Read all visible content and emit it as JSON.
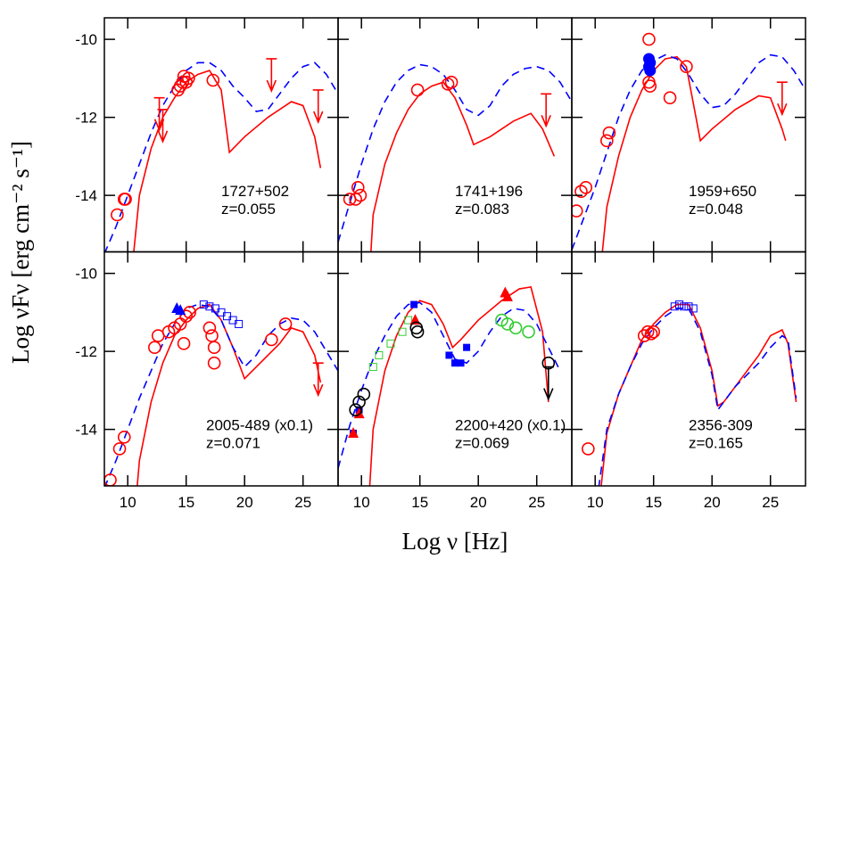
{
  "xlabel": "Log ν [Hz]",
  "ylabel": "Log νFν [erg cm⁻² s⁻¹]",
  "chart_data": [
    {
      "type": "scatter",
      "source": "1727+502",
      "redshift": "z=0.055",
      "xlim": [
        8,
        28
      ],
      "ylim": [
        -15.45,
        -9.45
      ],
      "xticks": [
        10,
        15,
        20,
        25
      ],
      "yticks": [
        -14,
        -12,
        -10
      ],
      "x_tick_labels": false,
      "y_tick_labels": true,
      "series": [
        {
          "marker": "line-solid",
          "color": "#ff0000",
          "x": [
            10.5,
            11,
            12,
            13,
            14,
            15,
            16,
            17,
            18,
            18.7,
            20,
            22,
            24,
            25,
            26,
            26.5
          ],
          "values": [
            -15.5,
            -14,
            -12.8,
            -12,
            -11.5,
            -11.1,
            -10.9,
            -10.8,
            -11.3,
            -12.9,
            -12.5,
            -12,
            -11.6,
            -11.7,
            -12.5,
            -13.3
          ]
        },
        {
          "marker": "line-dashed",
          "color": "#0000ff",
          "x": [
            8,
            9,
            10,
            11,
            12,
            13,
            14,
            15,
            16,
            17,
            18,
            19,
            20,
            21,
            22,
            23,
            24,
            25,
            26,
            27,
            28
          ],
          "values": [
            -15.5,
            -14.8,
            -14,
            -13.2,
            -12.4,
            -11.7,
            -11.2,
            -10.8,
            -10.6,
            -10.6,
            -10.8,
            -11.2,
            -11.5,
            -11.85,
            -11.8,
            -11.4,
            -11,
            -10.7,
            -10.6,
            -10.9,
            -11.4
          ]
        },
        {
          "marker": "open-circle",
          "color": "#ff0000",
          "x": [
            9.1,
            9.7,
            9.8,
            14.3,
            14.5,
            14.7,
            14.8,
            15,
            15.2,
            17.3
          ],
          "values": [
            -14.5,
            -14.1,
            -14.1,
            -11.3,
            -11.2,
            -11.1,
            -10.95,
            -11.1,
            -11,
            -11.05
          ]
        },
        {
          "marker": "upper-limit",
          "color": "#ff0000",
          "x": [
            12.7,
            13,
            22.3,
            26.3
          ],
          "values": [
            -11.5,
            -11.8,
            -10.5,
            -11.3
          ]
        }
      ]
    },
    {
      "type": "scatter",
      "source": "1741+196",
      "redshift": "z=0.083",
      "xlim": [
        8,
        28
      ],
      "ylim": [
        -15.45,
        -9.45
      ],
      "xticks": [
        10,
        15,
        20,
        25
      ],
      "yticks": [
        -14,
        -12,
        -10
      ],
      "x_tick_labels": false,
      "y_tick_labels": false,
      "series": [
        {
          "marker": "line-solid",
          "color": "#ff0000",
          "x": [
            10.8,
            11,
            12,
            13,
            14,
            15,
            16,
            17,
            18,
            19,
            19.6,
            21,
            23,
            24.5,
            25.5,
            26.5
          ],
          "values": [
            -15.5,
            -14.5,
            -13.2,
            -12.4,
            -11.8,
            -11.4,
            -11.2,
            -11.1,
            -11.5,
            -12.2,
            -12.7,
            -12.5,
            -12.1,
            -11.9,
            -12.3,
            -13
          ]
        },
        {
          "marker": "line-dashed",
          "color": "#0000ff",
          "x": [
            8,
            9,
            10,
            11,
            12,
            13,
            14,
            15,
            16,
            17,
            18,
            19,
            20,
            21,
            22,
            23,
            24,
            25,
            26,
            27,
            28
          ],
          "values": [
            -15.2,
            -14.2,
            -13.2,
            -12.3,
            -11.6,
            -11.1,
            -10.8,
            -10.65,
            -10.7,
            -10.9,
            -11.3,
            -11.8,
            -11.95,
            -11.7,
            -11.2,
            -10.9,
            -10.75,
            -10.7,
            -10.8,
            -11.1,
            -11.6
          ]
        },
        {
          "marker": "open-circle",
          "color": "#ff0000",
          "x": [
            9,
            9.5,
            9.7,
            9.9,
            14.8,
            17.4,
            17.7
          ],
          "values": [
            -14.1,
            -14.1,
            -13.8,
            -14,
            -11.3,
            -11.15,
            -11.1
          ]
        },
        {
          "marker": "upper-limit",
          "color": "#ff0000",
          "x": [
            25.8
          ],
          "values": [
            -11.4
          ]
        }
      ]
    },
    {
      "type": "scatter",
      "source": "1959+650",
      "redshift": "z=0.048",
      "xlim": [
        8,
        28
      ],
      "ylim": [
        -15.45,
        -9.45
      ],
      "xticks": [
        10,
        15,
        20,
        25
      ],
      "yticks": [
        -14,
        -12,
        -10
      ],
      "x_tick_labels": false,
      "y_tick_labels": false,
      "series": [
        {
          "marker": "line-solid",
          "color": "#ff0000",
          "x": [
            10.6,
            11,
            12,
            13,
            14,
            15,
            16,
            17,
            17.8,
            18.5,
            19,
            20,
            22,
            24,
            25,
            26,
            26.3
          ],
          "values": [
            -15.5,
            -14.3,
            -13,
            -12,
            -11.3,
            -10.8,
            -10.5,
            -10.45,
            -10.7,
            -11.8,
            -12.6,
            -12.3,
            -11.8,
            -11.45,
            -11.5,
            -12.3,
            -12.6
          ]
        },
        {
          "marker": "line-dashed",
          "color": "#0000ff",
          "x": [
            8,
            9,
            10,
            11,
            12,
            13,
            14,
            15,
            16,
            17,
            18,
            19,
            20,
            21,
            22,
            23,
            24,
            25,
            26,
            27,
            28
          ],
          "values": [
            -15.4,
            -14.6,
            -13.8,
            -12.9,
            -12,
            -11.3,
            -10.8,
            -10.55,
            -10.4,
            -10.5,
            -10.9,
            -11.4,
            -11.75,
            -11.7,
            -11.4,
            -11,
            -10.6,
            -10.4,
            -10.45,
            -10.8,
            -11.3
          ]
        },
        {
          "marker": "open-circle",
          "color": "#ff0000",
          "x": [
            8.4,
            8.8,
            9.2,
            11,
            11.2,
            14.6,
            14.6,
            14.7,
            16.4,
            17.8
          ],
          "values": [
            -14.4,
            -13.9,
            -13.8,
            -12.6,
            -12.4,
            -10,
            -11.1,
            -11.2,
            -11.5,
            -10.7
          ]
        },
        {
          "marker": "filled-circle",
          "color": "#0000ff",
          "x": [
            14.6,
            14.7,
            14.6,
            14.7
          ],
          "values": [
            -10.5,
            -10.6,
            -10.7,
            -10.8
          ]
        },
        {
          "marker": "upper-limit",
          "color": "#ff0000",
          "x": [
            26
          ],
          "values": [
            -11.1
          ]
        }
      ]
    },
    {
      "type": "scatter",
      "source": "2005-489 (x0.1)",
      "redshift": "z=0.071",
      "xlim": [
        8,
        28
      ],
      "ylim": [
        -15.45,
        -9.45
      ],
      "xticks": [
        10,
        15,
        20,
        25
      ],
      "yticks": [
        -14,
        -12,
        -10
      ],
      "x_tick_labels": true,
      "y_tick_labels": true,
      "series": [
        {
          "marker": "line-solid",
          "color": "#ff0000",
          "x": [
            10.8,
            11,
            12,
            13,
            14,
            15,
            16,
            17,
            18,
            19,
            20,
            21,
            23,
            24,
            25,
            26,
            26.5
          ],
          "values": [
            -15.5,
            -14.8,
            -13.3,
            -12.3,
            -11.6,
            -11.2,
            -10.9,
            -10.8,
            -11.2,
            -11.9,
            -12.7,
            -12.4,
            -11.8,
            -11.4,
            -11.5,
            -12.1,
            -12.8
          ]
        },
        {
          "marker": "line-dashed",
          "color": "#0000ff",
          "x": [
            8,
            9,
            10,
            11,
            12,
            13,
            14,
            15,
            16,
            17,
            18,
            19,
            20,
            21,
            22,
            23,
            24,
            25,
            26,
            27,
            28
          ],
          "values": [
            -15.5,
            -14.8,
            -14,
            -13.2,
            -12.5,
            -11.8,
            -11.3,
            -10.9,
            -10.8,
            -10.85,
            -11.2,
            -11.9,
            -12.4,
            -12.1,
            -11.6,
            -11.3,
            -11.15,
            -11.2,
            -11.5,
            -12,
            -12.5
          ]
        },
        {
          "marker": "open-circle",
          "color": "#ff0000",
          "x": [
            8.5,
            9.3,
            9.7,
            12.3,
            12.6,
            13.5,
            14,
            14.5,
            15,
            15.3,
            14.8,
            17,
            17.2,
            17.4,
            17.4,
            22.3,
            23.5
          ],
          "values": [
            -15.3,
            -14.5,
            -14.2,
            -11.9,
            -11.6,
            -11.5,
            -11.4,
            -11.3,
            -11.1,
            -11,
            -11.8,
            -11.4,
            -11.6,
            -11.9,
            -12.3,
            -11.7,
            -11.3
          ]
        },
        {
          "marker": "filled-triangle",
          "color": "#0000ff",
          "x": [
            14.2,
            14.5
          ],
          "values": [
            -10.9,
            -10.95
          ]
        },
        {
          "marker": "open-square",
          "color": "#0000ff",
          "x": [
            16.5,
            17,
            17.5,
            18,
            18.5,
            19,
            19.5
          ],
          "values": [
            -10.8,
            -10.85,
            -10.9,
            -11,
            -11.1,
            -11.2,
            -11.3
          ]
        },
        {
          "marker": "upper-limit",
          "color": "#ff0000",
          "x": [
            26.3
          ],
          "values": [
            -12.3
          ]
        }
      ]
    },
    {
      "type": "scatter",
      "source": "2200+420 (x0.1)",
      "redshift": "z=0.069",
      "xlim": [
        8,
        28
      ],
      "ylim": [
        -15.45,
        -9.45
      ],
      "xticks": [
        10,
        15,
        20,
        25
      ],
      "yticks": [
        -14,
        -12,
        -10
      ],
      "x_tick_labels": true,
      "y_tick_labels": false,
      "series": [
        {
          "marker": "line-solid",
          "color": "#ff0000",
          "x": [
            10.7,
            11,
            12,
            13,
            14,
            15,
            16,
            17,
            17.8,
            18.5,
            20,
            22,
            23.5,
            24.5,
            25.5,
            26
          ],
          "values": [
            -15.5,
            -14,
            -12.5,
            -11.6,
            -11,
            -10.7,
            -10.8,
            -11.3,
            -11.9,
            -11.7,
            -11.2,
            -10.7,
            -10.4,
            -10.35,
            -11.5,
            -13.3
          ]
        },
        {
          "marker": "line-dashed",
          "color": "#0000ff",
          "x": [
            8,
            9,
            10,
            11,
            12,
            13,
            14,
            15,
            16,
            17,
            18,
            19,
            20,
            21,
            22,
            23,
            24,
            25,
            26,
            27
          ],
          "values": [
            -15,
            -13.9,
            -13,
            -12.2,
            -11.6,
            -11.1,
            -10.8,
            -10.75,
            -11,
            -11.6,
            -12.2,
            -12.3,
            -12,
            -11.5,
            -11.1,
            -10.9,
            -10.95,
            -11.3,
            -11.9,
            -12.5
          ]
        },
        {
          "marker": "open-square",
          "color": "#33cc33",
          "x": [
            11,
            11.5,
            12.5,
            13.5,
            14
          ],
          "values": [
            -12.4,
            -12.1,
            -11.8,
            -11.5,
            -11.2
          ]
        },
        {
          "marker": "open-circle",
          "color": "#33cc33",
          "x": [
            22,
            22.5,
            23.2,
            24.3
          ],
          "values": [
            -11.2,
            -11.3,
            -11.4,
            -11.5
          ]
        },
        {
          "marker": "filled-square",
          "color": "#0000ff",
          "x": [
            9.3,
            9.8,
            14.5,
            17.5,
            18,
            18.5,
            19
          ],
          "values": [
            -14.1,
            -13.5,
            -10.8,
            -12.1,
            -12.3,
            -12.3,
            -11.9
          ]
        },
        {
          "marker": "filled-triangle",
          "color": "#ff0000",
          "x": [
            9.3,
            9.8,
            14.6,
            22.3,
            22.5
          ],
          "values": [
            -14.1,
            -13.6,
            -11.2,
            -10.5,
            -10.6
          ]
        },
        {
          "marker": "open-circle",
          "color": "#000000",
          "x": [
            9.5,
            9.8,
            10.2,
            14.7,
            14.8,
            26
          ],
          "values": [
            -13.5,
            -13.3,
            -13.1,
            -11.4,
            -11.5,
            -12.3
          ]
        },
        {
          "marker": "upper-limit",
          "color": "#000000",
          "x": [
            26
          ],
          "values": [
            -12.4
          ]
        }
      ]
    },
    {
      "type": "scatter",
      "source": "2356-309",
      "redshift": "z=0.165",
      "xlim": [
        8,
        28
      ],
      "ylim": [
        -15.45,
        -9.45
      ],
      "xticks": [
        10,
        15,
        20,
        25
      ],
      "yticks": [
        -14,
        -12,
        -10
      ],
      "x_tick_labels": true,
      "y_tick_labels": false,
      "series": [
        {
          "marker": "line-solid",
          "color": "#ff0000",
          "x": [
            10.5,
            11,
            12,
            13,
            14,
            15,
            16,
            17,
            18,
            19,
            20,
            20.5,
            21,
            22,
            24,
            25,
            26,
            26.5,
            27.2
          ],
          "values": [
            -15.5,
            -14.1,
            -13.1,
            -12.4,
            -11.7,
            -11.3,
            -11,
            -10.8,
            -10.8,
            -11.4,
            -12.5,
            -13.4,
            -13.3,
            -12.9,
            -12.1,
            -11.6,
            -11.45,
            -11.8,
            -13.3
          ]
        },
        {
          "marker": "line-dashed",
          "color": "#0000ff",
          "x": [
            10.3,
            11,
            12,
            13,
            14,
            15,
            16,
            17,
            18,
            19,
            20,
            20.5,
            21,
            22,
            24,
            25,
            26,
            26.5,
            27.2
          ],
          "values": [
            -15.5,
            -14,
            -13.1,
            -12.4,
            -11.8,
            -11.4,
            -11.1,
            -10.9,
            -10.9,
            -11.5,
            -12.6,
            -13.5,
            -13.3,
            -12.9,
            -12.3,
            -11.9,
            -11.6,
            -11.7,
            -13.2
          ]
        },
        {
          "marker": "open-circle",
          "color": "#ff0000",
          "x": [
            9.4,
            14.2,
            14.5,
            14.8,
            15
          ],
          "values": [
            -14.5,
            -11.6,
            -11.5,
            -11.55,
            -11.5
          ]
        },
        {
          "marker": "open-square",
          "color": "#0000ff",
          "x": [
            16.8,
            17.2,
            17.6,
            18,
            18.4
          ],
          "values": [
            -10.85,
            -10.8,
            -10.85,
            -10.85,
            -10.9
          ]
        }
      ]
    }
  ]
}
